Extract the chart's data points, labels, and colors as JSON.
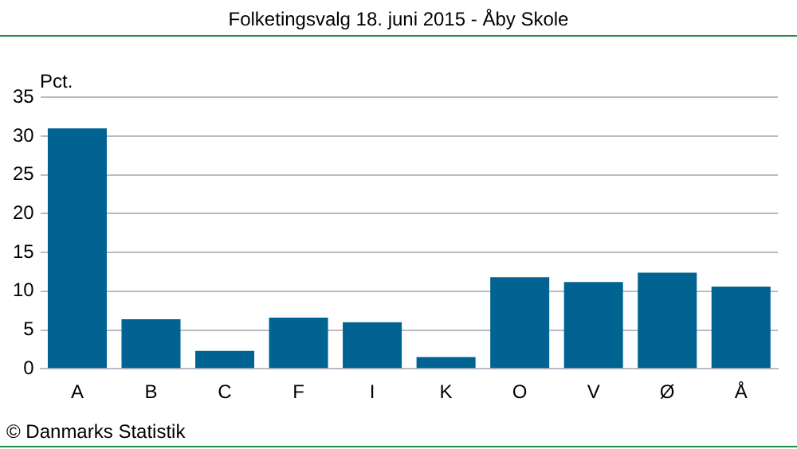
{
  "chart_data": {
    "type": "bar",
    "title": "Folketingsvalg 18. juni 2015 - Åby Skole",
    "ylabel": "Pct.",
    "categories": [
      "A",
      "B",
      "C",
      "F",
      "I",
      "K",
      "O",
      "V",
      "Ø",
      "Å"
    ],
    "values": [
      31.0,
      6.4,
      2.3,
      6.6,
      6.0,
      1.5,
      11.8,
      11.2,
      12.4,
      10.6
    ],
    "color": "#006391",
    "ylim": [
      0,
      35
    ],
    "yticks": [
      0,
      5,
      10,
      15,
      20,
      25,
      30,
      35
    ],
    "grid": "y",
    "annotations": [
      "© Danmarks Statistik"
    ]
  }
}
